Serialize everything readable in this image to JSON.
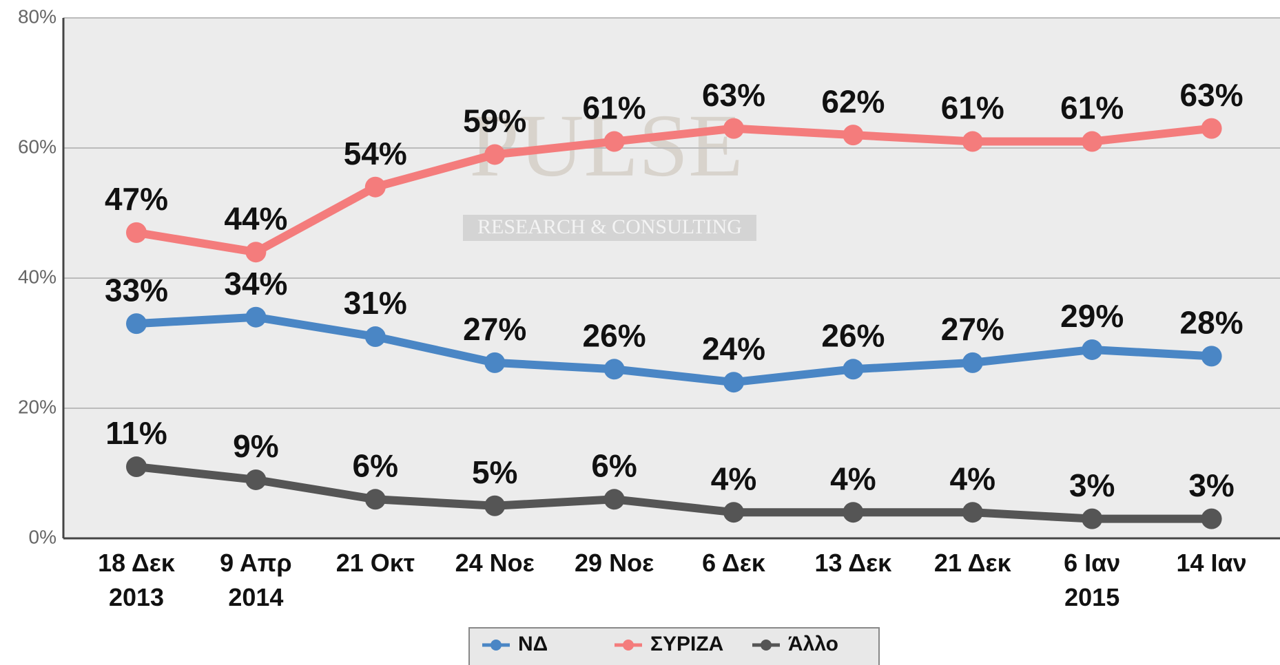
{
  "chart_data": {
    "type": "line",
    "watermark": [
      "PULSE",
      "RESEARCH & CONSULTING"
    ],
    "categories": [
      "18 Δεκ\n2013",
      "9 Απρ\n2014",
      "21 Οκτ",
      "24 Νοε",
      "29 Νοε",
      "6 Δεκ",
      "13 Δεκ",
      "21 Δεκ",
      "6 Ιαν\n2015",
      "14 Ιαν"
    ],
    "series": [
      {
        "name": "ΝΔ",
        "color": "#4a86c5",
        "values": [
          33,
          34,
          31,
          27,
          26,
          24,
          26,
          27,
          29,
          28
        ],
        "value_labels": [
          "33%",
          "34%",
          "31%",
          "27%",
          "26%",
          "24%",
          "26%",
          "27%",
          "29%",
          "28%"
        ]
      },
      {
        "name": "ΣΥΡΙΖΑ",
        "color": "#f47c7c",
        "values": [
          47,
          44,
          54,
          59,
          61,
          63,
          62,
          61,
          61,
          63
        ],
        "value_labels": [
          "47%",
          "44%",
          "54%",
          "59%",
          "61%",
          "63%",
          "62%",
          "61%",
          "61%",
          "63%"
        ]
      },
      {
        "name": "Άλλο",
        "color": "#555555",
        "values": [
          11,
          9,
          6,
          5,
          6,
          4,
          4,
          4,
          3,
          3
        ],
        "value_labels": [
          "11%",
          "9%",
          "6%",
          "5%",
          "6%",
          "4%",
          "4%",
          "4%",
          "3%",
          "3%"
        ]
      }
    ],
    "ylim": [
      0,
      80
    ],
    "yticks": [
      {
        "value": 0,
        "label": "0%"
      },
      {
        "value": 20,
        "label": "20%"
      },
      {
        "value": 40,
        "label": "40%"
      },
      {
        "value": 60,
        "label": "60%"
      },
      {
        "value": 80,
        "label": "80%"
      }
    ],
    "grid": true,
    "legend": "bottom"
  }
}
